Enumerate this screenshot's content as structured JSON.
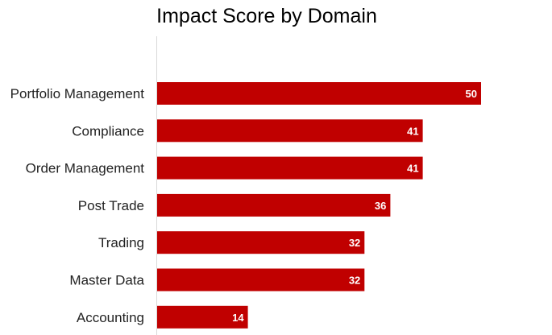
{
  "chart_data": {
    "type": "bar",
    "orientation": "horizontal",
    "title": "Impact Score by Domain",
    "xlabel": "",
    "ylabel": "",
    "categories": [
      "Portfolio Management",
      "Compliance",
      "Order Management",
      "Post Trade",
      "Trading",
      "Master Data",
      "Accounting"
    ],
    "values": [
      50,
      41,
      41,
      36,
      32,
      32,
      14
    ],
    "xlim": [
      0,
      60
    ],
    "grid": false,
    "legend": "none",
    "data_labels": true,
    "bar_color": "#c00000",
    "axis_color": "#d9d9d9"
  }
}
